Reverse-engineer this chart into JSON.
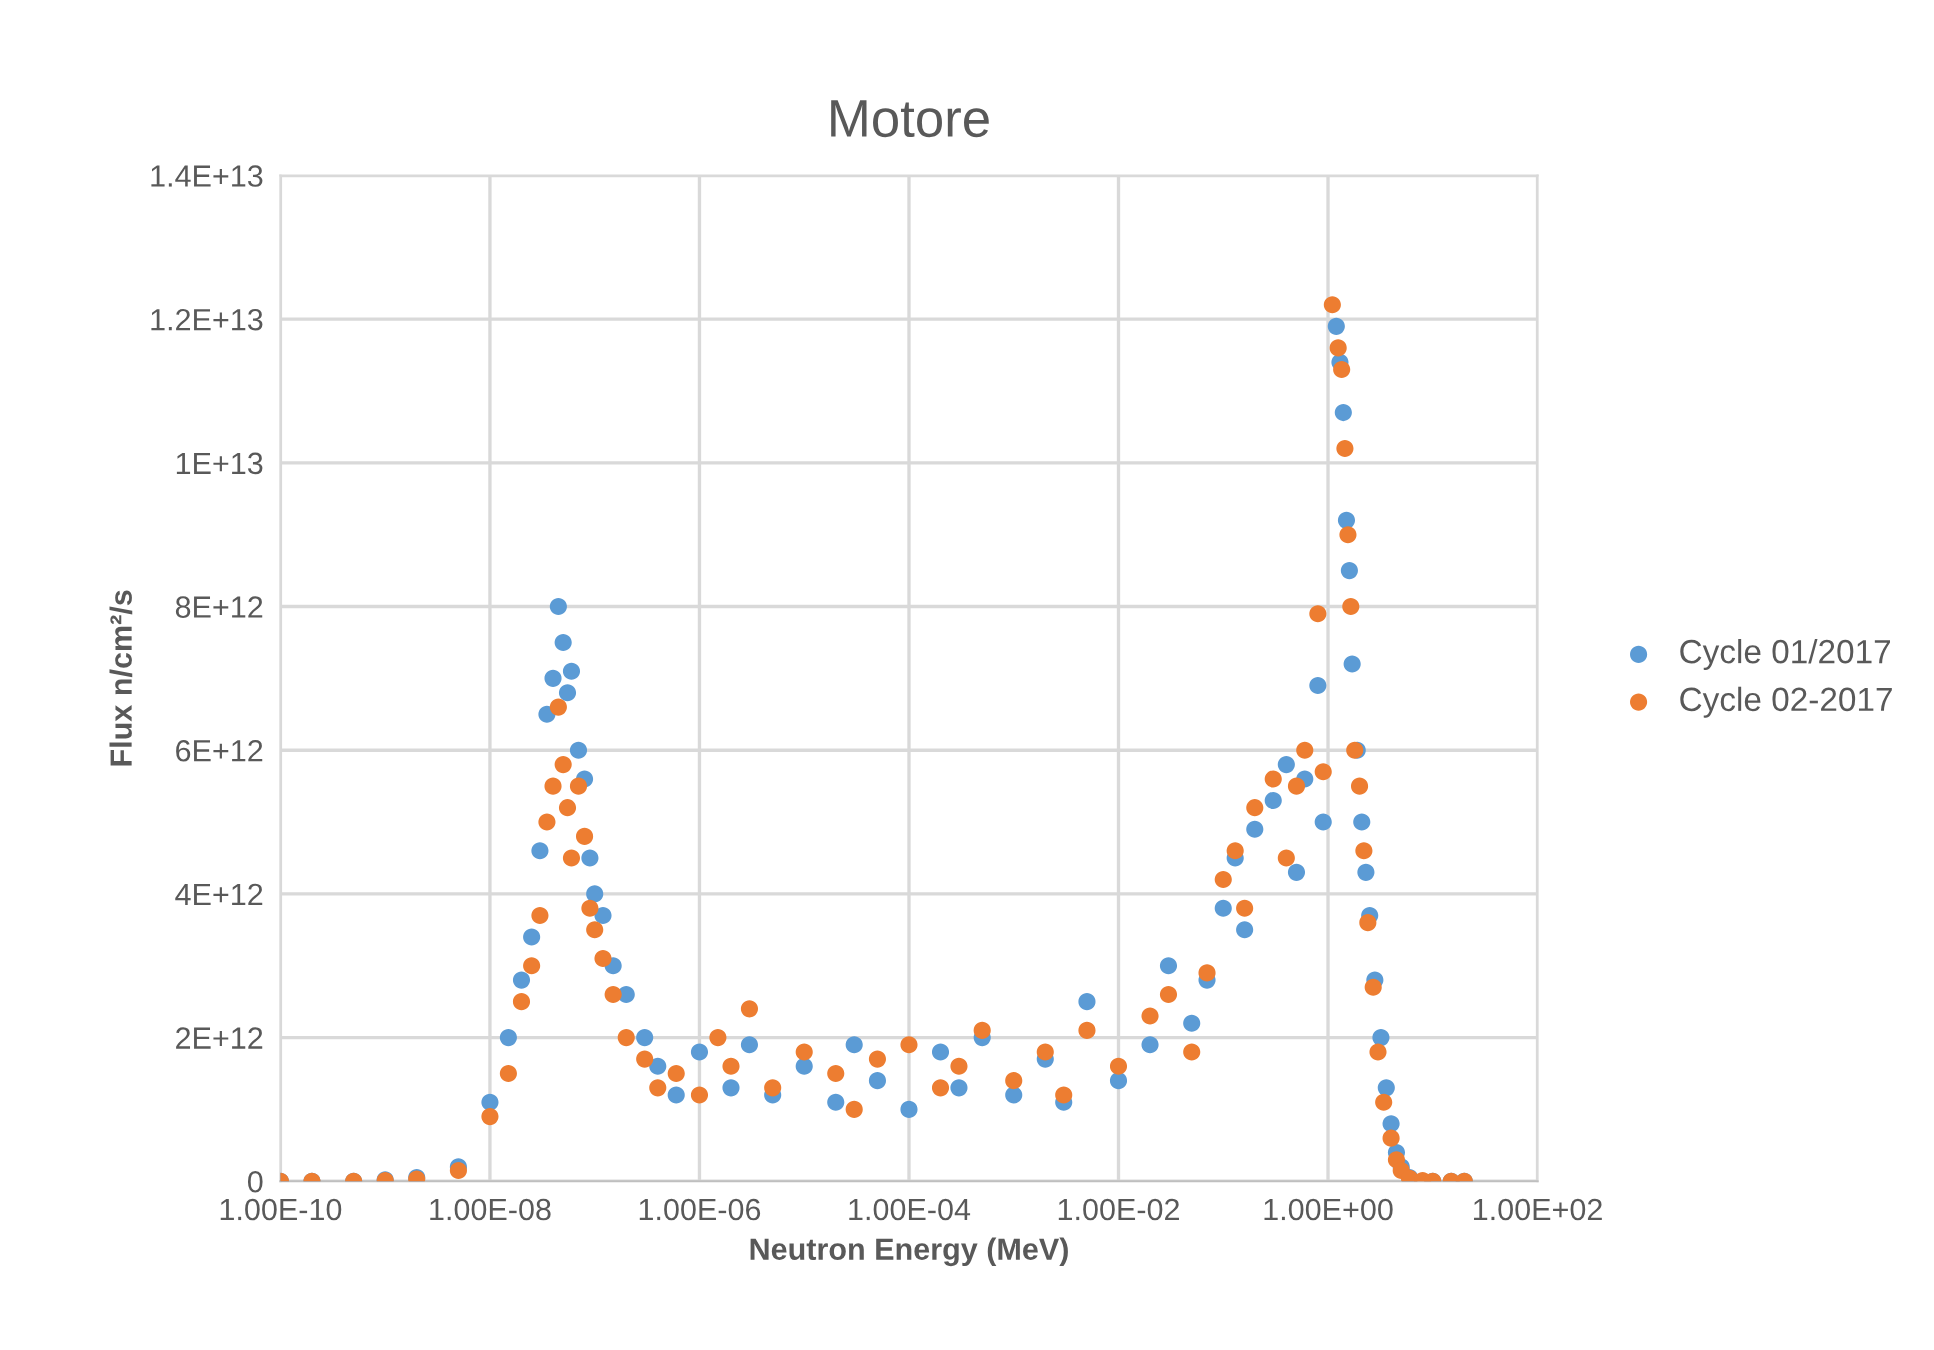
{
  "chart_data": {
    "type": "scatter",
    "title": "Motore",
    "xlabel": "Neutron Energy (MeV)",
    "ylabel": "Flux n/cm²/s",
    "log": "x",
    "grid": true,
    "legend": "right",
    "marker": "circle",
    "xlim": [
      1e-10,
      100
    ],
    "ylim": [
      0,
      14000000000000.0
    ],
    "xticks": [
      {
        "value": 1e-10,
        "label": "1.00E-10"
      },
      {
        "value": 1e-08,
        "label": "1.00E-08"
      },
      {
        "value": 1e-06,
        "label": "1.00E-06"
      },
      {
        "value": 0.0001,
        "label": "1.00E-04"
      },
      {
        "value": 0.01,
        "label": "1.00E-02"
      },
      {
        "value": 1,
        "label": "1.00E+00"
      },
      {
        "value": 100,
        "label": "1.00E+02"
      }
    ],
    "yticks": [
      0,
      {
        "value": 2000000000000.0,
        "label": "2E+12"
      },
      {
        "value": 4000000000000.0,
        "label": "4E+12"
      },
      {
        "value": 6000000000000.0,
        "label": "6E+12"
      },
      {
        "value": 8000000000000.0,
        "label": "8E+12"
      },
      {
        "value": 10000000000000.0,
        "label": "1E+13"
      },
      {
        "value": 12000000000000.0,
        "label": "1.2E+13"
      },
      {
        "value": 14000000000000.0,
        "label": "1.4E+13"
      }
    ],
    "series": [
      {
        "name": "Cycle 01/2017",
        "color": "#5b9bd5",
        "x": [
          1e-10,
          2e-10,
          5e-10,
          1e-09,
          2e-09,
          5e-09,
          1e-08,
          1.5e-08,
          2e-08,
          2.5e-08,
          3e-08,
          3.5e-08,
          4e-08,
          4.5e-08,
          5e-08,
          5.5e-08,
          6e-08,
          7e-08,
          8e-08,
          9e-08,
          1e-07,
          1.2e-07,
          1.5e-07,
          2e-07,
          3e-07,
          4e-07,
          6e-07,
          1e-06,
          2e-06,
          3e-06,
          5e-06,
          1e-05,
          2e-05,
          3e-05,
          5e-05,
          0.0001,
          0.0002,
          0.0003,
          0.0005,
          0.001,
          0.002,
          0.003,
          0.005,
          0.01,
          0.02,
          0.03,
          0.05,
          0.07,
          0.1,
          0.13,
          0.16,
          0.2,
          0.3,
          0.4,
          0.5,
          0.6,
          0.8,
          0.9,
          1.2,
          1.3,
          1.4,
          1.5,
          1.6,
          1.7,
          1.9,
          2.1,
          2.3,
          2.5,
          2.8,
          3.2,
          3.6,
          4,
          4.5,
          5,
          6,
          8,
          10,
          15,
          20
        ],
        "values": [
          0,
          0,
          0,
          20000000000.0,
          50000000000.0,
          200000000000.0,
          1100000000000.0,
          2000000000000.0,
          2800000000000.0,
          3400000000000.0,
          4600000000000.0,
          6500000000000.0,
          7000000000000.0,
          8000000000000.0,
          7500000000000.0,
          6800000000000.0,
          7100000000000.0,
          6000000000000.0,
          5600000000000.0,
          4500000000000.0,
          4000000000000.0,
          3700000000000.0,
          3000000000000.0,
          2600000000000.0,
          2000000000000.0,
          1600000000000.0,
          1200000000000.0,
          1800000000000.0,
          1300000000000.0,
          1900000000000.0,
          1200000000000.0,
          1600000000000.0,
          1100000000000.0,
          1900000000000.0,
          1400000000000.0,
          1000000000000.0,
          1800000000000.0,
          1300000000000.0,
          2000000000000.0,
          1200000000000.0,
          1700000000000.0,
          1100000000000.0,
          2500000000000.0,
          1400000000000.0,
          1900000000000.0,
          3000000000000.0,
          2200000000000.0,
          2800000000000.0,
          3800000000000.0,
          4500000000000.0,
          3500000000000.0,
          4900000000000.0,
          5300000000000.0,
          5800000000000.0,
          4300000000000.0,
          5600000000000.0,
          6900000000000.0,
          5000000000000.0,
          11900000000000.0,
          11400000000000.0,
          10700000000000.0,
          9200000000000.0,
          8500000000000.0,
          7200000000000.0,
          6000000000000.0,
          5000000000000.0,
          4300000000000.0,
          3700000000000.0,
          2800000000000.0,
          2000000000000.0,
          1300000000000.0,
          800000000000.0,
          400000000000.0,
          200000000000.0,
          50000000000.0,
          null,
          0,
          0,
          0
        ]
      },
      {
        "name": "Cycle 02-2017",
        "color": "#ed7d31",
        "x": [
          1e-10,
          2e-10,
          5e-10,
          1e-09,
          2e-09,
          5e-09,
          1e-08,
          1.5e-08,
          2e-08,
          2.5e-08,
          3e-08,
          3.5e-08,
          4e-08,
          4.5e-08,
          5e-08,
          5.5e-08,
          6e-08,
          7e-08,
          8e-08,
          9e-08,
          1e-07,
          1.2e-07,
          1.5e-07,
          2e-07,
          3e-07,
          4e-07,
          6e-07,
          1e-06,
          1.5e-06,
          2e-06,
          3e-06,
          5e-06,
          1e-05,
          2e-05,
          3e-05,
          5e-05,
          0.0001,
          0.0002,
          0.0003,
          0.0005,
          0.001,
          0.002,
          0.003,
          0.005,
          0.01,
          0.02,
          0.03,
          0.05,
          0.07,
          0.1,
          0.13,
          0.16,
          0.2,
          0.3,
          0.4,
          0.5,
          0.6,
          0.8,
          0.9,
          1.1,
          1.25,
          1.35,
          1.45,
          1.55,
          1.65,
          1.8,
          2,
          2.2,
          2.4,
          2.7,
          3,
          3.4,
          4,
          4.5,
          5,
          6,
          8,
          10,
          15,
          20
        ],
        "values": [
          0,
          0,
          0,
          10000000000.0,
          30000000000.0,
          150000000000.0,
          900000000000.0,
          1500000000000.0,
          2500000000000.0,
          3000000000000.0,
          3700000000000.0,
          5000000000000.0,
          5500000000000.0,
          6600000000000.0,
          5800000000000.0,
          5200000000000.0,
          4500000000000.0,
          5500000000000.0,
          4800000000000.0,
          3800000000000.0,
          3500000000000.0,
          3100000000000.0,
          2600000000000.0,
          2000000000000.0,
          1700000000000.0,
          1300000000000.0,
          1500000000000.0,
          1200000000000.0,
          2000000000000.0,
          1600000000000.0,
          2400000000000.0,
          1300000000000.0,
          1800000000000.0,
          1500000000000.0,
          1000000000000.0,
          1700000000000.0,
          1900000000000.0,
          1300000000000.0,
          1600000000000.0,
          2100000000000.0,
          1400000000000.0,
          1800000000000.0,
          1200000000000.0,
          2100000000000.0,
          1600000000000.0,
          2300000000000.0,
          2600000000000.0,
          1800000000000.0,
          2900000000000.0,
          4200000000000.0,
          4600000000000.0,
          3800000000000.0,
          5200000000000.0,
          5600000000000.0,
          4500000000000.0,
          5500000000000.0,
          6000000000000.0,
          7900000000000.0,
          5700000000000.0,
          12200000000000.0,
          11600000000000.0,
          11300000000000.0,
          10200000000000.0,
          9000000000000.0,
          8000000000000.0,
          6000000000000.0,
          5500000000000.0,
          4600000000000.0,
          3600000000000.0,
          2700000000000.0,
          1800000000000.0,
          1100000000000.0,
          600000000000.0,
          300000000000.0,
          150000000000.0,
          40000000000.0,
          10000000000.0,
          0,
          0,
          0
        ]
      }
    ]
  }
}
